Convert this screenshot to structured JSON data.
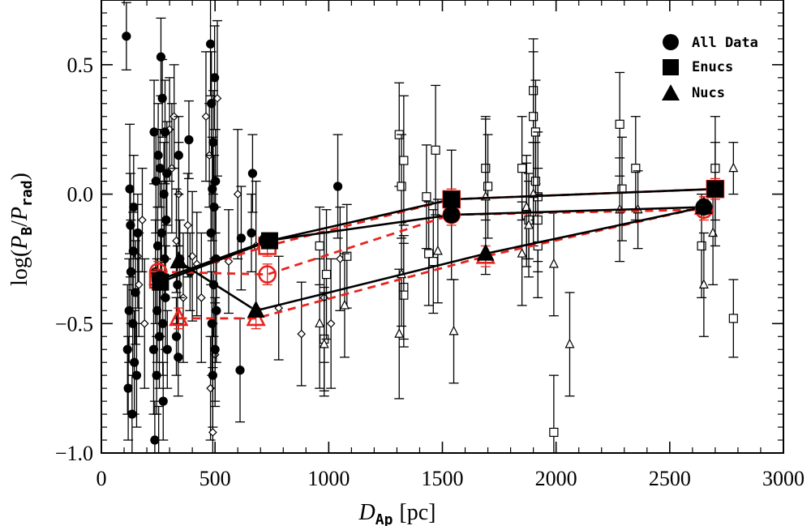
{
  "chart_data": {
    "type": "scatter",
    "title": "",
    "xlabel": "D",
    "xlabel_sub": "Ap",
    "xlabel_unit": "[pc]",
    "ylabel_prefix": "log(",
    "ylabel_num": "P",
    "ylabel_num_sub": "B",
    "ylabel_sep": "/",
    "ylabel_den": "P",
    "ylabel_den_sub": "rad",
    "ylabel_suffix": ")",
    "xlim": [
      0,
      3000
    ],
    "ylim": [
      -1.0,
      0.75
    ],
    "x_ticks": [
      0,
      500,
      1000,
      1500,
      2000,
      2500,
      3000
    ],
    "x_tick_labels": [
      "0",
      "500",
      "1000",
      "1500",
      "2000",
      "2500",
      "3000"
    ],
    "y_ticks": [
      -1.0,
      -0.5,
      0.0,
      0.5
    ],
    "y_tick_labels": [
      "−1.0",
      "−0.5",
      "0.0",
      "0.5"
    ],
    "legend": {
      "position": "top-right",
      "entries": [
        {
          "label": "All Data",
          "marker": "circle"
        },
        {
          "label": "Enucs",
          "marker": "square"
        },
        {
          "label": "Nucs",
          "marker": "triangle"
        }
      ]
    },
    "individual_points": {
      "filled_circles": [
        [
          110,
          0.61,
          0.13
        ],
        [
          115,
          -0.6,
          0.25
        ],
        [
          118,
          -0.75,
          0.2
        ],
        [
          122,
          -0.45,
          0.2
        ],
        [
          125,
          0.02,
          0.25
        ],
        [
          128,
          -0.12,
          0.2
        ],
        [
          130,
          -0.3,
          0.2
        ],
        [
          135,
          -0.85,
          0.15
        ],
        [
          138,
          -0.5,
          0.2
        ],
        [
          140,
          -0.22,
          0.15
        ],
        [
          142,
          -0.05,
          0.2
        ],
        [
          145,
          -0.65,
          0.2
        ],
        [
          150,
          -0.38,
          0.2
        ],
        [
          155,
          -0.7,
          0.2
        ],
        [
          160,
          -0.15,
          0.15
        ],
        [
          230,
          -0.6,
          0.25
        ],
        [
          232,
          0.24,
          0.2
        ],
        [
          235,
          -0.95,
          0.15
        ],
        [
          238,
          -0.3,
          0.2
        ],
        [
          240,
          0.05,
          0.2
        ],
        [
          243,
          -0.7,
          0.15
        ],
        [
          245,
          -0.45,
          0.2
        ],
        [
          248,
          -0.2,
          0.15
        ],
        [
          250,
          0.15,
          0.2
        ],
        [
          252,
          -1.02,
          0.2
        ],
        [
          255,
          -0.55,
          0.2
        ],
        [
          258,
          0.1,
          0.15
        ],
        [
          260,
          -0.35,
          0.2
        ],
        [
          262,
          0.53,
          0.15
        ],
        [
          265,
          -0.15,
          0.2
        ],
        [
          268,
          0.37,
          0.15
        ],
        [
          270,
          -0.5,
          0.2
        ],
        [
          272,
          -0.8,
          0.15
        ],
        [
          275,
          0.0,
          0.2
        ],
        [
          278,
          -0.25,
          0.15
        ],
        [
          280,
          0.24,
          0.2
        ],
        [
          282,
          -0.4,
          0.2
        ],
        [
          285,
          -0.1,
          0.15
        ],
        [
          288,
          0.08,
          0.2
        ],
        [
          290,
          -0.6,
          0.15
        ],
        [
          330,
          -0.55,
          0.15
        ],
        [
          335,
          -0.35,
          0.15
        ],
        [
          338,
          -0.63,
          0.15
        ],
        [
          340,
          0.15,
          0.15
        ],
        [
          345,
          -0.25,
          0.15
        ],
        [
          385,
          0.21,
          0.15
        ],
        [
          390,
          -0.3,
          0.15
        ],
        [
          480,
          0.58,
          0.2
        ],
        [
          482,
          -0.15,
          0.2
        ],
        [
          484,
          0.35,
          0.2
        ],
        [
          486,
          -0.5,
          0.2
        ],
        [
          488,
          0.02,
          0.2
        ],
        [
          490,
          -0.7,
          0.2
        ],
        [
          492,
          0.2,
          0.2
        ],
        [
          494,
          -0.35,
          0.2
        ],
        [
          496,
          -0.05,
          0.2
        ],
        [
          498,
          0.45,
          0.2
        ],
        [
          500,
          -0.6,
          0.2
        ],
        [
          502,
          0.05,
          0.2
        ],
        [
          504,
          -0.25,
          0.2
        ],
        [
          506,
          -0.45,
          0.2
        ],
        [
          610,
          -0.68,
          0.2
        ],
        [
          615,
          -0.17,
          0.2
        ],
        [
          660,
          -0.15,
          0.15
        ],
        [
          665,
          0.08,
          0.15
        ],
        [
          1040,
          0.03,
          0.2
        ]
      ],
      "open_diamonds": [
        [
          160,
          -0.24,
          0.2
        ],
        [
          165,
          -0.35,
          0.2
        ],
        [
          180,
          -0.1,
          0.2
        ],
        [
          190,
          -0.5,
          0.25
        ],
        [
          300,
          0.25,
          0.2
        ],
        [
          310,
          0.1,
          0.25
        ],
        [
          320,
          0.3,
          0.2
        ],
        [
          330,
          -0.18,
          0.2
        ],
        [
          340,
          0.0,
          0.2
        ],
        [
          360,
          -0.4,
          0.25
        ],
        [
          380,
          -0.12,
          0.2
        ],
        [
          400,
          -0.24,
          0.25
        ],
        [
          420,
          -0.27,
          0.2
        ],
        [
          440,
          -0.4,
          0.25
        ],
        [
          460,
          0.3,
          0.25
        ],
        [
          475,
          0.15,
          0.2
        ],
        [
          480,
          -0.75,
          0.2
        ],
        [
          490,
          -0.92,
          0.25
        ],
        [
          500,
          -0.62,
          0.2
        ],
        [
          510,
          0.37,
          0.3
        ],
        [
          560,
          -0.26,
          0.2
        ],
        [
          600,
          0.0,
          0.25
        ],
        [
          680,
          -0.2,
          0.25
        ],
        [
          780,
          -0.44,
          0.2
        ],
        [
          880,
          -0.54,
          0.2
        ],
        [
          980,
          -0.4,
          0.25
        ],
        [
          1010,
          -0.5,
          0.25
        ],
        [
          1050,
          -0.25,
          0.2
        ]
      ],
      "open_squares": [
        [
          960,
          -0.2,
          0.15
        ],
        [
          980,
          -0.56,
          0.2
        ],
        [
          990,
          -0.31,
          0.25
        ],
        [
          1080,
          -0.24,
          0.2
        ],
        [
          1310,
          0.23,
          0.2
        ],
        [
          1320,
          0.03,
          0.2
        ],
        [
          1330,
          0.13,
          0.25
        ],
        [
          1330,
          -0.36,
          0.2
        ],
        [
          1330,
          -0.39,
          0.2
        ],
        [
          1430,
          -0.01,
          0.2
        ],
        [
          1440,
          -0.23,
          0.2
        ],
        [
          1460,
          -0.26,
          0.2
        ],
        [
          1470,
          0.17,
          0.25
        ],
        [
          1540,
          -0.08,
          0.25
        ],
        [
          1690,
          0.1,
          0.2
        ],
        [
          1700,
          0.03,
          0.2
        ],
        [
          1850,
          0.1,
          0.2
        ],
        [
          1870,
          -0.08,
          0.2
        ],
        [
          1880,
          -0.1,
          0.15
        ],
        [
          1900,
          0.4,
          0.2
        ],
        [
          1900,
          0.3,
          0.25
        ],
        [
          1910,
          0.24,
          0.2
        ],
        [
          1910,
          0.05,
          0.15
        ],
        [
          1920,
          -0.01,
          0.25
        ],
        [
          1920,
          -0.1,
          0.2
        ],
        [
          1920,
          -0.2,
          0.2
        ],
        [
          1990,
          -0.92,
          0.22
        ],
        [
          2280,
          0.27,
          0.2
        ],
        [
          2290,
          0.02,
          0.2
        ],
        [
          2350,
          0.1,
          0.2
        ],
        [
          2640,
          -0.2,
          0.2
        ],
        [
          2700,
          0.1,
          0.2
        ],
        [
          2780,
          -0.48,
          0.15
        ]
      ],
      "open_triangles": [
        [
          960,
          -0.5,
          0.25
        ],
        [
          980,
          -0.58,
          0.2
        ],
        [
          1070,
          -0.43,
          0.2
        ],
        [
          1310,
          -0.54,
          0.25
        ],
        [
          1320,
          -0.31,
          0.2
        ],
        [
          1480,
          -0.22,
          0.2
        ],
        [
          1550,
          -0.53,
          0.2
        ],
        [
          1690,
          -0.01,
          0.3
        ],
        [
          1850,
          -0.23,
          0.2
        ],
        [
          1870,
          -0.05,
          0.2
        ],
        [
          1880,
          -0.12,
          0.2
        ],
        [
          1900,
          0.0,
          0.2
        ],
        [
          1990,
          -0.27,
          0.2
        ],
        [
          2060,
          -0.58,
          0.2
        ],
        [
          2280,
          -0.06,
          0.2
        ],
        [
          2360,
          -0.06,
          0.15
        ],
        [
          2650,
          -0.35,
          0.2
        ],
        [
          2690,
          -0.15,
          0.2
        ],
        [
          2700,
          0.0,
          0.2
        ],
        [
          2780,
          0.1,
          0.1
        ]
      ]
    },
    "binned_black": {
      "circles": [
        [
          258,
          -0.33
        ],
        [
          730,
          -0.18
        ],
        [
          1540,
          -0.08
        ],
        [
          2650,
          -0.05
        ]
      ],
      "squares": [
        [
          260,
          -0.34
        ],
        [
          740,
          -0.18
        ],
        [
          1540,
          -0.02
        ],
        [
          2700,
          0.02
        ]
      ],
      "triangles": [
        [
          340,
          -0.26
        ],
        [
          680,
          -0.45
        ],
        [
          1690,
          -0.23
        ],
        [
          2650,
          -0.05
        ]
      ]
    },
    "binned_red": {
      "circles": [
        [
          250,
          -0.3
        ],
        [
          730,
          -0.31
        ],
        [
          1540,
          -0.08
        ],
        [
          2650,
          -0.06
        ]
      ],
      "squares": [
        [
          250,
          -0.33
        ],
        [
          730,
          -0.2
        ],
        [
          1540,
          -0.02
        ],
        [
          2700,
          0.02
        ]
      ],
      "triangles": [
        [
          340,
          -0.48
        ],
        [
          680,
          -0.48
        ],
        [
          1690,
          -0.24
        ],
        [
          2650,
          -0.05
        ]
      ]
    },
    "colors": {
      "black": "#000000",
      "red": "#e8231d"
    }
  }
}
